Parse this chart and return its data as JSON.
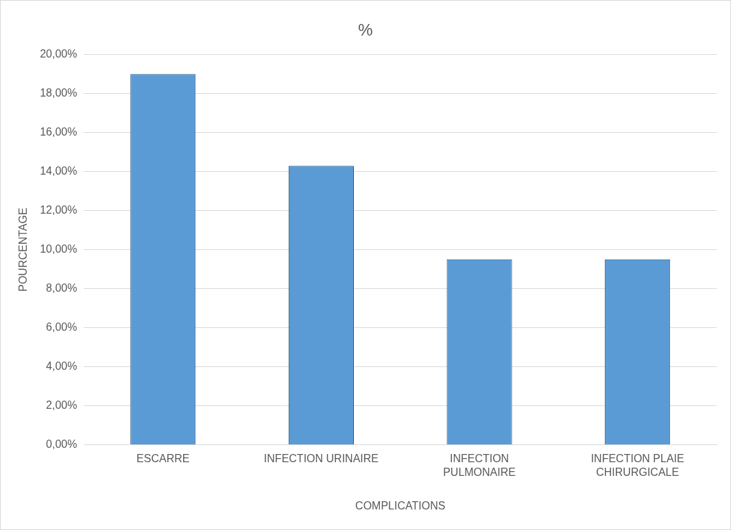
{
  "chart_data": {
    "type": "bar",
    "title": "%",
    "xlabel": "COMPLICATIONS",
    "ylabel": "POURCENTAGE",
    "categories": [
      "ESCARRE",
      "INFECTION URINAIRE",
      "INFECTION PULMONAIRE",
      "INFECTION PLAIE CHIRURGICALE"
    ],
    "values": [
      19.0,
      14.3,
      9.5,
      9.5
    ],
    "color": "#5b9bd5",
    "ylim": [
      0,
      20
    ],
    "yticks": [
      {
        "value": 0,
        "label": "0,00%"
      },
      {
        "value": 2,
        "label": "2,00%"
      },
      {
        "value": 4,
        "label": "4,00%"
      },
      {
        "value": 6,
        "label": "6,00%"
      },
      {
        "value": 8,
        "label": "8,00%"
      },
      {
        "value": 10,
        "label": "10,00%"
      },
      {
        "value": 12,
        "label": "12,00%"
      },
      {
        "value": 14,
        "label": "14,00%"
      },
      {
        "value": 16,
        "label": "16,00%"
      },
      {
        "value": 18,
        "label": "18,00%"
      },
      {
        "value": 20,
        "label": "20,00%"
      }
    ],
    "grid": "y"
  }
}
